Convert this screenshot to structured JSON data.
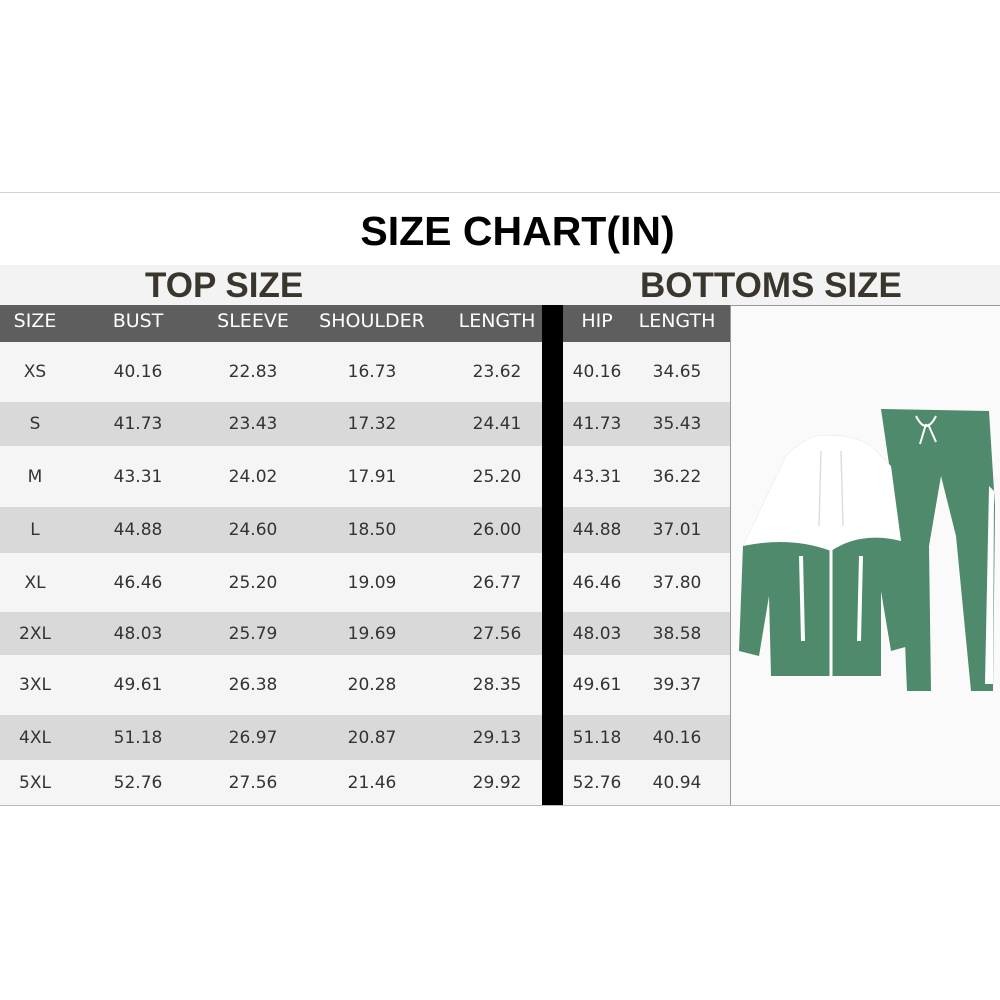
{
  "title": "SIZE CHART(IN)",
  "top": {
    "heading": "TOP SIZE",
    "columns": [
      "SIZE",
      "BUST",
      "SLEEVE",
      "SHOULDER",
      "LENGTH"
    ],
    "rows": [
      [
        "XS",
        "40.16",
        "22.83",
        "16.73",
        "23.62"
      ],
      [
        "S",
        "41.73",
        "23.43",
        "17.32",
        "24.41"
      ],
      [
        "M",
        "43.31",
        "24.02",
        "17.91",
        "25.20"
      ],
      [
        "L",
        "44.88",
        "24.60",
        "18.50",
        "26.00"
      ],
      [
        "XL",
        "46.46",
        "25.20",
        "19.09",
        "26.77"
      ],
      [
        "2XL",
        "48.03",
        "25.79",
        "19.69",
        "27.56"
      ],
      [
        "3XL",
        "49.61",
        "26.38",
        "20.28",
        "28.35"
      ],
      [
        "4XL",
        "51.18",
        "26.97",
        "20.87",
        "29.13"
      ],
      [
        "5XL",
        "52.76",
        "27.56",
        "21.46",
        "29.92"
      ]
    ]
  },
  "bottoms": {
    "heading": "BOTTOMS SIZE",
    "columns": [
      "HIP",
      "LENGTH"
    ],
    "rows": [
      [
        "40.16",
        "34.65"
      ],
      [
        "41.73",
        "35.43"
      ],
      [
        "43.31",
        "36.22"
      ],
      [
        "44.88",
        "37.01"
      ],
      [
        "46.46",
        "37.80"
      ],
      [
        "48.03",
        "38.58"
      ],
      [
        "49.61",
        "39.37"
      ],
      [
        "51.18",
        "40.16"
      ],
      [
        "52.76",
        "40.94"
      ]
    ]
  },
  "colors": {
    "header_bg": "#5e5e5e",
    "stripe": "#d9d9d9",
    "garment_green": "#4f8a6c",
    "garment_white": "#ffffff"
  }
}
